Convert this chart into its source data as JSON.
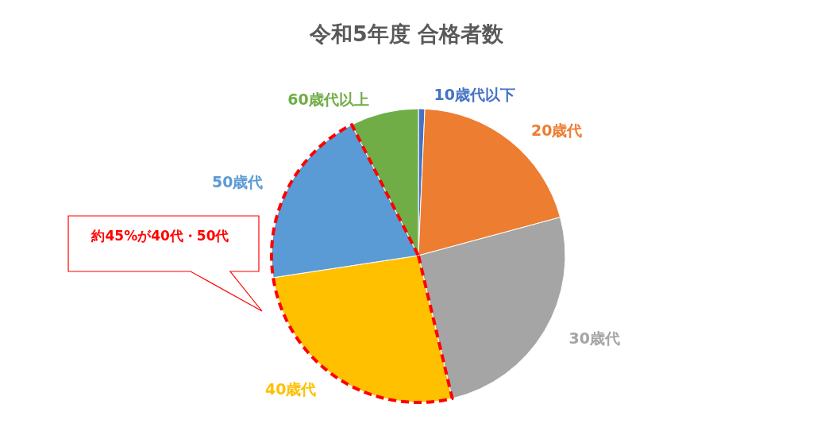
{
  "chart_data": {
    "type": "pie",
    "title": "令和5年度 合格者数",
    "categories": [
      "10歳代以下",
      "20歳代",
      "30歳代",
      "40歳代",
      "50歳代",
      "60歳代以上"
    ],
    "values": [
      0.7,
      20.1,
      25.5,
      26.3,
      19.9,
      7.5
    ],
    "colors": [
      "#4472c4",
      "#ed7d31",
      "#a5a5a5",
      "#ffc000",
      "#5b9bd5",
      "#70ad47"
    ],
    "annotations": [
      "約45%が40代・50代"
    ],
    "legend": false
  }
}
